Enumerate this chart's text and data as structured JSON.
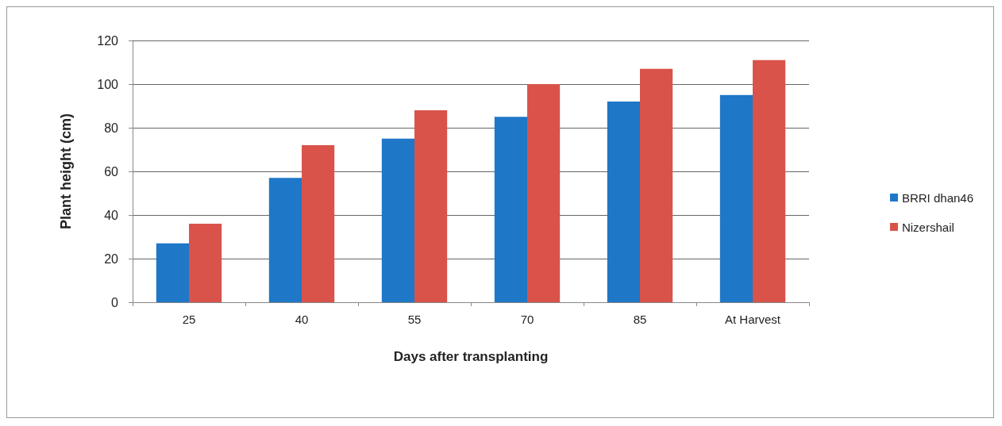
{
  "chart_data": {
    "type": "bar",
    "xlabel": "Days after transplanting",
    "ylabel": "Plant height (cm)",
    "categories": [
      "25",
      "40",
      "55",
      "70",
      "85",
      "At Harvest"
    ],
    "series": [
      {
        "name": "BRRI dhan46",
        "color": "#1f77c8",
        "values": [
          27,
          57,
          75,
          85,
          92,
          95
        ]
      },
      {
        "name": "Nizershail",
        "color": "#d9534a",
        "values": [
          36,
          72,
          88,
          100,
          107,
          111
        ]
      }
    ],
    "ylim": [
      0,
      120
    ],
    "yticks": [
      0,
      20,
      40,
      60,
      80,
      100,
      120
    ],
    "grid": "y",
    "legend": "right"
  }
}
